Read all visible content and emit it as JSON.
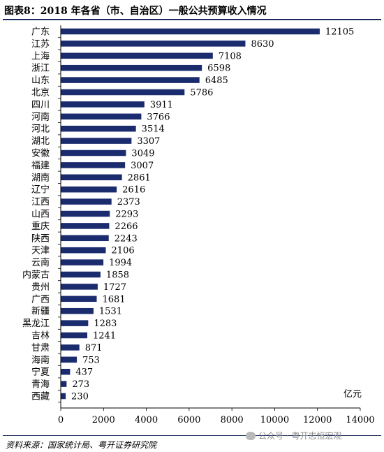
{
  "header": {
    "title": "图表8：2018 年各省（市、自治区）一般公共预算收入情况"
  },
  "chart_data": {
    "type": "bar",
    "orientation": "horizontal",
    "categories": [
      "广东",
      "江苏",
      "上海",
      "浙江",
      "山东",
      "北京",
      "四川",
      "河南",
      "河北",
      "湖北",
      "安徽",
      "福建",
      "湖南",
      "辽宁",
      "江西",
      "山西",
      "重庆",
      "陕西",
      "天津",
      "云南",
      "内蒙古",
      "贵州",
      "广西",
      "新疆",
      "黑龙江",
      "吉林",
      "甘肃",
      "海南",
      "宁夏",
      "青海",
      "西藏"
    ],
    "values": [
      12105,
      8630,
      7108,
      6598,
      6485,
      5786,
      3911,
      3766,
      3514,
      3307,
      3049,
      3007,
      2861,
      2616,
      2373,
      2293,
      2266,
      2243,
      2106,
      1994,
      1858,
      1727,
      1681,
      1531,
      1283,
      1241,
      871,
      753,
      437,
      273,
      230
    ],
    "xlim": [
      0,
      14000
    ],
    "xticks": [
      0,
      2000,
      4000,
      6000,
      8000,
      10000,
      12000,
      14000
    ],
    "unit_label": "亿元",
    "bar_color": "#1a2b6e",
    "data_labels": true,
    "grid": false,
    "legend": "none"
  },
  "footer": {
    "source": "资料来源：国家统计局、粤开证券研究院",
    "watermark": "公众号 · 粤开志恒宏观"
  }
}
